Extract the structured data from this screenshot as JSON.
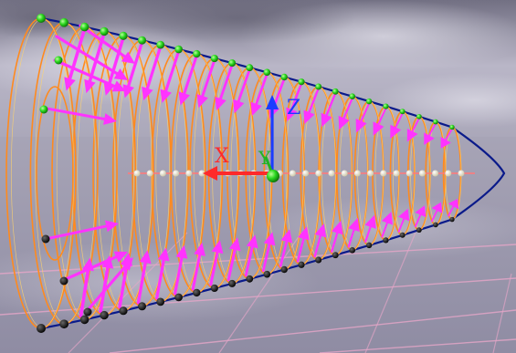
{
  "axis_labels": {
    "x": "X",
    "y": "Y",
    "z": "Z"
  },
  "colors": {
    "sky_top": "#727083",
    "sky_mid": "#b9b6c7",
    "ground": "#8f8ca3",
    "grid_line": "#e6a6c8",
    "ring": "#ff8a1e",
    "ring_highlight": "#ffd36b",
    "outline": "#0a1a8a",
    "arrow": "#ff33ff",
    "x_axis": "#ff2a2a",
    "y_axis": "#22b322",
    "z_axis": "#1a3cff",
    "point_top": "#29d61e",
    "point_bottom": "#111111",
    "axis_point": "#f3f1dc"
  },
  "scene": {
    "ring_count": 24,
    "axis_point_count": 26,
    "arrows_on_top_half": 22,
    "arrows_on_bottom_half": 22
  }
}
